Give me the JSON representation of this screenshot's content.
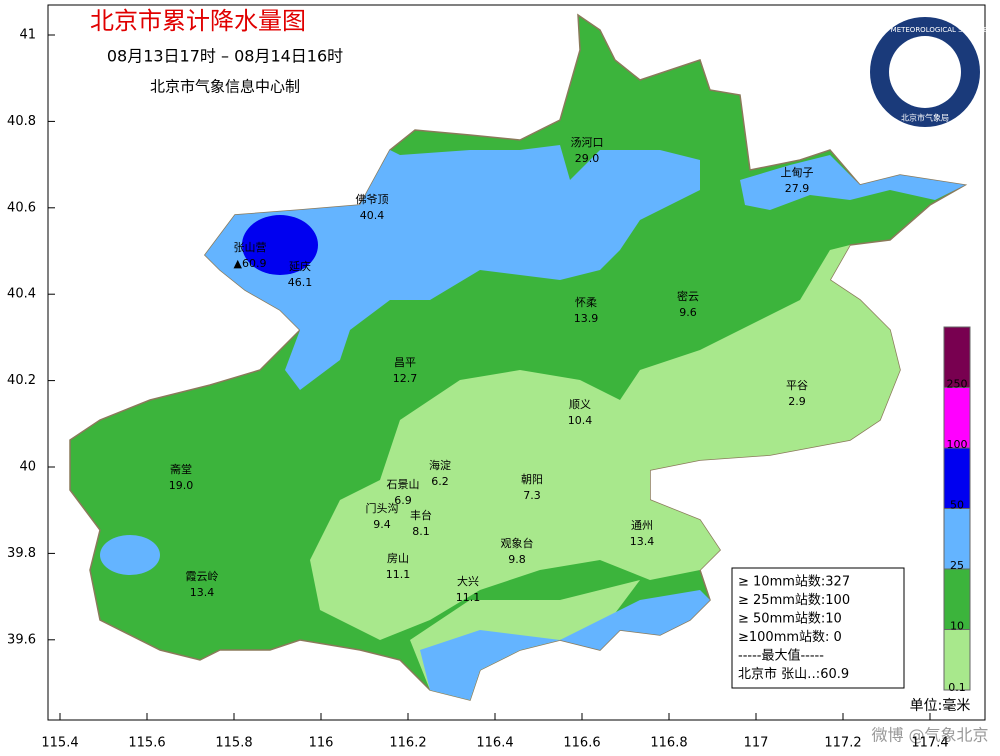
{
  "header": {
    "title": "北京市累计降水量图",
    "period": "08月13日17时 – 08月14日16时",
    "producer": "北京市气象信息中心制"
  },
  "axes": {
    "lon_ticks": [
      115.4,
      115.6,
      115.8,
      116,
      116.2,
      116.4,
      116.6,
      116.8,
      117,
      117.2,
      117.4
    ],
    "lat_ticks": [
      41,
      40.8,
      40.6,
      40.4,
      40.2,
      40,
      39.8,
      39.6
    ]
  },
  "stations": [
    {
      "name": "汤河口",
      "value": "29.0"
    },
    {
      "name": "上甸子",
      "value": "27.9"
    },
    {
      "name": "佛爷顶",
      "value": "40.4"
    },
    {
      "name": "张山营",
      "value": "▲60.9"
    },
    {
      "name": "延庆",
      "value": "46.1"
    },
    {
      "name": "怀柔",
      "value": "13.9"
    },
    {
      "name": "密云",
      "value": "9.6"
    },
    {
      "name": "昌平",
      "value": "12.7"
    },
    {
      "name": "平谷",
      "value": "2.9"
    },
    {
      "name": "顺义",
      "value": "10.4"
    },
    {
      "name": "海淀",
      "value": "6.2"
    },
    {
      "name": "朝阳",
      "value": "7.3"
    },
    {
      "name": "石景山",
      "value": "6.9"
    },
    {
      "name": "门头沟",
      "value": "9.4"
    },
    {
      "name": "丰台",
      "value": "8.1"
    },
    {
      "name": "通州",
      "value": "13.4"
    },
    {
      "name": "观象台",
      "value": "9.8"
    },
    {
      "name": "房山",
      "value": "11.1"
    },
    {
      "name": "大兴",
      "value": "11.1"
    },
    {
      "name": "霞云岭",
      "value": "13.4"
    },
    {
      "name": "斋堂",
      "value": "19.0"
    }
  ],
  "legend": {
    "levels": [
      0.1,
      10,
      25,
      50,
      100,
      250
    ],
    "colors": [
      "#a8e88c",
      "#3cb43c",
      "#64b4ff",
      "#0000f0",
      "#ff00ff",
      "#780050"
    ],
    "unit": "单位:毫米"
  },
  "stats": [
    "≥ 10mm站数:327",
    "≥ 25mm站数:100",
    "≥ 50mm站数:10",
    "≥100mm站数: 0",
    "-----最大值-----",
    "北京市 张山‥:60.9"
  ],
  "logo": {
    "ring": "BEIJING METEOROLOGICAL SERVICE",
    "name": "北京市气象局"
  },
  "watermark": "微博 @气象北京"
}
